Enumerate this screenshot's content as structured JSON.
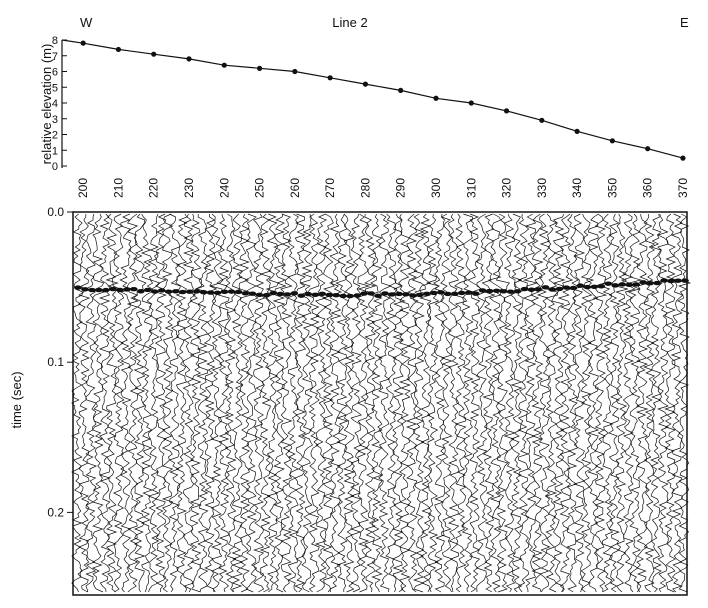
{
  "header": {
    "title": "Line 2",
    "left_label": "W",
    "right_label": "E"
  },
  "chart_data": [
    {
      "type": "line",
      "title": "Line 2",
      "xlabel": "",
      "ylabel": "relative elevation (m)",
      "x_ticks": [
        200,
        210,
        220,
        230,
        240,
        250,
        260,
        270,
        280,
        290,
        300,
        310,
        320,
        330,
        340,
        350,
        360,
        370
      ],
      "y_ticks": [
        0,
        1,
        2,
        3,
        4,
        5,
        6,
        7,
        8
      ],
      "xlim": [
        194,
        372
      ],
      "ylim": [
        0,
        8
      ],
      "grid": false,
      "series": [
        {
          "x": [
            194,
            200,
            210,
            220,
            230,
            240,
            250,
            260,
            270,
            280,
            290,
            300,
            310,
            320,
            330,
            340,
            350,
            360,
            370
          ],
          "y": [
            8.0,
            7.8,
            7.4,
            7.1,
            6.8,
            6.4,
            6.2,
            6.0,
            5.6,
            5.2,
            4.8,
            4.3,
            4.0,
            3.5,
            2.9,
            2.2,
            1.6,
            1.1,
            0.5
          ]
        }
      ],
      "line_color": "#111111"
    },
    {
      "type": "seismic_section",
      "ylabel": "time (sec)",
      "y_ticks": [
        "0.0",
        "0.1",
        "0.2"
      ],
      "y_tick_values": [
        0.0,
        0.1,
        0.2
      ],
      "ylim": [
        0.0,
        0.255
      ],
      "y_inverted": true,
      "shares_x_with_above": true,
      "reflector_time_sec": [
        0.05,
        0.055
      ]
    }
  ]
}
